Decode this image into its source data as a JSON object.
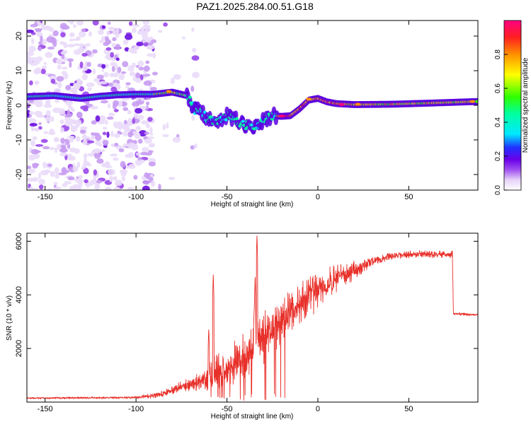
{
  "title": "PAZ1.2025.284.00.51.G18",
  "spectrogram": {
    "type": "heatmap",
    "xlabel": "Height of straight line (km)",
    "ylabel": "Frequency (Hz)",
    "xlim": [
      -160,
      88
    ],
    "ylim": [
      -24.5,
      24.5
    ],
    "xticks": [
      -150,
      -100,
      -50,
      0,
      50
    ],
    "yticks": [
      -20,
      -10,
      0,
      10,
      20
    ],
    "track": [
      [
        -160,
        2.5
      ],
      [
        -145,
        2.8
      ],
      [
        -130,
        2.0
      ],
      [
        -120,
        2.6
      ],
      [
        -110,
        3.0
      ],
      [
        -100,
        3.2
      ],
      [
        -90,
        3.2
      ],
      [
        -80,
        3.8
      ],
      [
        -72,
        2.8
      ],
      [
        -68,
        -1.0
      ],
      [
        -64,
        -2.0
      ],
      [
        -60,
        -4.0
      ],
      [
        -55,
        -5.0
      ],
      [
        -50,
        -3.0
      ],
      [
        -45,
        -4.2
      ],
      [
        -40,
        -5.5
      ],
      [
        -35,
        -7.0
      ],
      [
        -30,
        -4.5
      ],
      [
        -25,
        -3.0
      ],
      [
        -20,
        -3.2
      ],
      [
        -15,
        -3.0
      ],
      [
        -10,
        -1.0
      ],
      [
        -5,
        1.5
      ],
      [
        0,
        2.0
      ],
      [
        5,
        1.0
      ],
      [
        10,
        0.5
      ],
      [
        20,
        0.2
      ],
      [
        40,
        0.3
      ],
      [
        60,
        0.6
      ],
      [
        88,
        1.1
      ]
    ]
  },
  "colorbar": {
    "label": "Normalized spectral amplitude",
    "range": [
      0,
      1
    ],
    "ticks": [
      "0.0",
      "0.2",
      "0.4",
      "0.6",
      "0.8"
    ]
  },
  "snr": {
    "type": "line",
    "color": "#e8302a",
    "xlabel": "Height of straight line (km)",
    "ylabel": "SNR (10 * v/v)",
    "xlim": [
      -160,
      88
    ],
    "ylim": [
      0,
      6300
    ],
    "xticks": [
      -150,
      -100,
      -50,
      0,
      50
    ],
    "yticks": [
      2000,
      4000,
      6000
    ],
    "profile": [
      [
        -160,
        150
      ],
      [
        -120,
        160
      ],
      [
        -100,
        170
      ],
      [
        -85,
        300
      ],
      [
        -75,
        550
      ],
      [
        -65,
        750
      ],
      [
        -60,
        900
      ],
      [
        -55,
        1100
      ],
      [
        -50,
        1300
      ],
      [
        -45,
        1550
      ],
      [
        -40,
        1800
      ],
      [
        -35,
        2100
      ],
      [
        -30,
        2400
      ],
      [
        -25,
        2750
      ],
      [
        -20,
        3050
      ],
      [
        -15,
        3350
      ],
      [
        -10,
        3650
      ],
      [
        -5,
        3950
      ],
      [
        0,
        4150
      ],
      [
        5,
        4350
      ],
      [
        10,
        4600
      ],
      [
        20,
        4900
      ],
      [
        30,
        5250
      ],
      [
        40,
        5450
      ],
      [
        50,
        5500
      ],
      [
        60,
        5520
      ],
      [
        74,
        5500
      ],
      [
        74.5,
        3300
      ],
      [
        88,
        3250
      ]
    ],
    "noise": [
      [
        -160,
        40
      ],
      [
        -100,
        50
      ],
      [
        -85,
        150
      ],
      [
        -75,
        250
      ],
      [
        -65,
        400
      ],
      [
        -60,
        600
      ],
      [
        -55,
        800
      ],
      [
        -50,
        800
      ],
      [
        -45,
        900
      ],
      [
        -40,
        1000
      ],
      [
        -35,
        1000
      ],
      [
        -30,
        1100
      ],
      [
        -25,
        1100
      ],
      [
        -20,
        1000
      ],
      [
        -10,
        900
      ],
      [
        0,
        800
      ],
      [
        10,
        600
      ],
      [
        20,
        400
      ],
      [
        30,
        200
      ],
      [
        40,
        150
      ],
      [
        74,
        150
      ],
      [
        75,
        60
      ],
      [
        88,
        60
      ]
    ],
    "spikes": [
      [
        -57.5,
        4800
      ],
      [
        -60,
        2800
      ],
      [
        -33.5,
        6250
      ],
      [
        -34.5,
        4700
      ],
      [
        -35,
        3600
      ]
    ]
  }
}
